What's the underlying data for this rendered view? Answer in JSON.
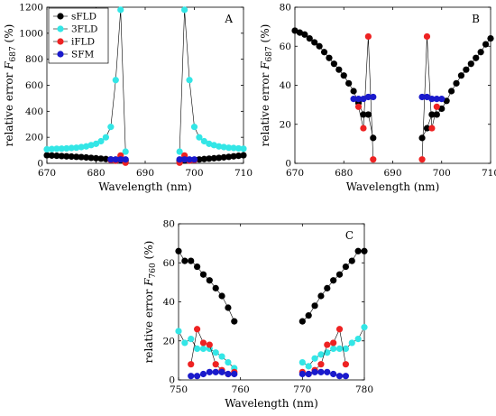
{
  "colors": {
    "sFLD": "#000000",
    "3FLD": "#33e6e6",
    "iFLD": "#ee2222",
    "SFM": "#1a1acc",
    "line": "#000000"
  },
  "chart_data": [
    {
      "type": "line",
      "panel": "A",
      "xlabel": "Wavelength (nm)",
      "ylabel_prefix": "relative error ",
      "ylabel_var": "F",
      "ylabel_sub": "687",
      "ylabel_suffix": " (%)",
      "xlim": [
        670,
        710
      ],
      "ylim": [
        0,
        1200
      ],
      "xticks": [
        670,
        680,
        690,
        700,
        710
      ],
      "yticks": [
        0,
        200,
        400,
        600,
        800,
        1000,
        1200
      ],
      "legend": {
        "placement": "top-left",
        "entries": [
          "sFLD",
          "3FLD",
          "iFLD",
          "SFM"
        ]
      },
      "series": [
        {
          "name": "sFLD",
          "segments": [
            {
              "x": [
                670,
                671,
                672,
                673,
                674,
                675,
                676,
                677,
                678,
                679,
                680,
                681,
                682,
                683,
                684,
                685,
                686
              ],
              "y": [
                62,
                60,
                58,
                56,
                54,
                52,
                50,
                48,
                45,
                42,
                39,
                36,
                33,
                30,
                28,
                25,
                20
              ]
            },
            {
              "x": [
                697,
                698,
                699,
                700,
                701,
                702,
                703,
                704,
                705,
                706,
                707,
                708,
                709,
                710
              ],
              "y": [
                20,
                22,
                24,
                27,
                30,
                33,
                36,
                39,
                42,
                46,
                50,
                54,
                58,
                62
              ]
            }
          ]
        },
        {
          "name": "3FLD",
          "segments": [
            {
              "x": [
                670,
                671,
                672,
                673,
                674,
                675,
                676,
                677,
                678,
                679,
                680,
                681,
                682,
                683,
                684,
                685,
                686
              ],
              "y": [
                108,
                110,
                112,
                113,
                115,
                118,
                120,
                125,
                130,
                140,
                150,
                170,
                200,
                280,
                640,
                1180,
                90
              ]
            },
            {
              "x": [
                697,
                698,
                699,
                700,
                701,
                702,
                703,
                704,
                705,
                706,
                707,
                708,
                709,
                710
              ],
              "y": [
                90,
                1180,
                640,
                280,
                200,
                170,
                150,
                140,
                130,
                125,
                120,
                118,
                115,
                112
              ]
            }
          ]
        },
        {
          "name": "iFLD",
          "segments": [
            {
              "x": [
                683,
                684,
                685,
                686
              ],
              "y": [
                25,
                20,
                60,
                5
              ]
            },
            {
              "x": [
                697,
                698,
                699,
                700
              ],
              "y": [
                5,
                60,
                20,
                25
              ]
            }
          ]
        },
        {
          "name": "SFM",
          "segments": [
            {
              "x": [
                683,
                684,
                685,
                686
              ],
              "y": [
                30,
                30,
                30,
                30
              ]
            },
            {
              "x": [
                697,
                698,
                699,
                700
              ],
              "y": [
                30,
                30,
                30,
                30
              ]
            }
          ]
        }
      ]
    },
    {
      "type": "line",
      "panel": "B",
      "xlabel": "Wavelength (nm)",
      "ylabel_prefix": "relative error ",
      "ylabel_var": "F",
      "ylabel_sub": "687",
      "ylabel_suffix": " (%)",
      "xlim": [
        670,
        710
      ],
      "ylim": [
        0,
        80
      ],
      "xticks": [
        670,
        680,
        690,
        700,
        710
      ],
      "yticks": [
        0,
        20,
        40,
        60,
        80
      ],
      "series": [
        {
          "name": "sFLD",
          "segments": [
            {
              "x": [
                670,
                671,
                672,
                673,
                674,
                675,
                676,
                677,
                678,
                679,
                680,
                681,
                682,
                683,
                684,
                685,
                686
              ],
              "y": [
                68,
                67,
                66,
                64,
                62,
                60,
                57,
                54,
                51,
                48,
                45,
                41,
                37,
                31,
                25,
                25,
                13
              ]
            },
            {
              "x": [
                696,
                697,
                698,
                699,
                700,
                701,
                702,
                703,
                704,
                705,
                706,
                707,
                708,
                709,
                710
              ],
              "y": [
                13,
                18,
                25,
                25,
                28,
                32,
                37,
                41,
                45,
                48,
                51,
                54,
                57,
                61,
                64
              ]
            }
          ]
        },
        {
          "name": "iFLD",
          "segments": [
            {
              "x": [
                683,
                684,
                685,
                686
              ],
              "y": [
                29,
                18,
                65,
                2
              ]
            },
            {
              "x": [
                696,
                697,
                698,
                699
              ],
              "y": [
                2,
                65,
                18,
                29
              ]
            }
          ]
        },
        {
          "name": "SFM",
          "segments": [
            {
              "x": [
                682,
                683,
                684,
                685,
                686
              ],
              "y": [
                33,
                33,
                33,
                34,
                34
              ]
            },
            {
              "x": [
                696,
                697,
                698,
                699,
                700
              ],
              "y": [
                34,
                34,
                33,
                33,
                33
              ]
            }
          ]
        }
      ]
    },
    {
      "type": "line",
      "panel": "C",
      "xlabel": "Wavelength (nm)",
      "ylabel_prefix": "relative error ",
      "ylabel_var": "F",
      "ylabel_sub": "760",
      "ylabel_suffix": " (%)",
      "xlim": [
        750,
        780
      ],
      "ylim": [
        0,
        80
      ],
      "xticks": [
        750,
        760,
        770,
        780
      ],
      "yticks": [
        0,
        20,
        40,
        60,
        80
      ],
      "series": [
        {
          "name": "sFLD",
          "segments": [
            {
              "x": [
                750,
                751,
                752,
                753,
                754,
                755,
                756,
                757,
                758,
                759
              ],
              "y": [
                66,
                61,
                61,
                58,
                54,
                51,
                47,
                43,
                37,
                30
              ]
            },
            {
              "x": [
                770,
                771,
                772,
                773,
                774,
                775,
                776,
                777,
                778,
                779,
                780
              ],
              "y": [
                30,
                33,
                38,
                43,
                47,
                51,
                54,
                58,
                61,
                66,
                66
              ]
            }
          ]
        },
        {
          "name": "3FLD",
          "segments": [
            {
              "x": [
                750,
                751,
                752,
                753,
                754,
                755,
                756,
                757,
                758,
                759
              ],
              "y": [
                25,
                19,
                21,
                16,
                16,
                16,
                14,
                12,
                9,
                6
              ]
            },
            {
              "x": [
                770,
                771,
                772,
                773,
                774,
                775,
                776,
                777,
                778,
                779,
                780
              ],
              "y": [
                9,
                7,
                11,
                13,
                14,
                16,
                16,
                16,
                19,
                21,
                27
              ]
            }
          ]
        },
        {
          "name": "iFLD",
          "segments": [
            {
              "x": [
                752,
                753,
                754,
                755,
                756,
                757,
                758,
                759
              ],
              "y": [
                8,
                26,
                19,
                18,
                8,
                5,
                3,
                4
              ]
            },
            {
              "x": [
                770,
                771,
                772,
                773,
                774,
                775,
                776,
                777
              ],
              "y": [
                4,
                3,
                5,
                8,
                18,
                19,
                26,
                8
              ]
            }
          ]
        },
        {
          "name": "SFM",
          "segments": [
            {
              "x": [
                752,
                753,
                754,
                755,
                756,
                757,
                758,
                759
              ],
              "y": [
                2,
                2,
                3,
                4,
                4,
                4,
                3,
                3
              ]
            },
            {
              "x": [
                770,
                771,
                772,
                773,
                774,
                775,
                776,
                777
              ],
              "y": [
                3,
                3,
                4,
                4,
                4,
                3,
                2,
                2
              ]
            }
          ]
        }
      ]
    }
  ]
}
